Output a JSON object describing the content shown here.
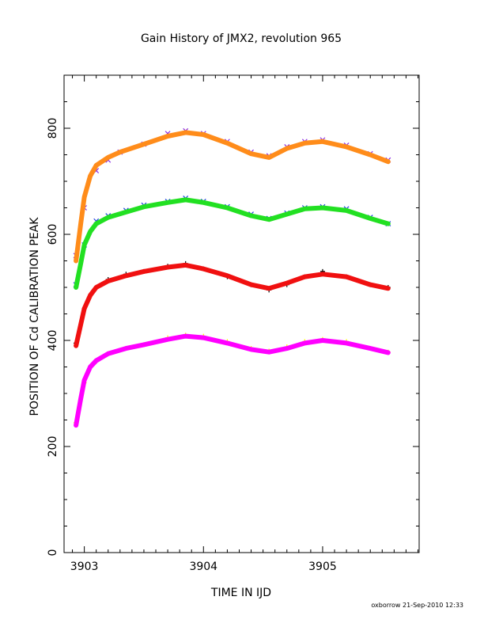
{
  "chart_data": {
    "type": "scatter",
    "title": "Gain History of JMX2, revolution 965",
    "xlabel": "TIME IN IJD",
    "ylabel": "POSITION OF Cd CALIBRATION PEAK",
    "xlim": [
      3902.83,
      3905.81
    ],
    "ylim": [
      0,
      900
    ],
    "xticks": [
      3903,
      3904,
      3905
    ],
    "xtick_labels": [
      "3903",
      "3904",
      "3905"
    ],
    "yticks": [
      0,
      200,
      400,
      600,
      800
    ],
    "ytick_labels": [
      "0",
      "200",
      "400",
      "600",
      "800"
    ],
    "grid": false,
    "footer": "oxborrow 21-Sep-2010 12:33",
    "series": [
      {
        "color": "#8a2be2",
        "marker": "x",
        "x": [
          3902.93,
          3903.0,
          3903.1,
          3903.2,
          3903.3,
          3903.5,
          3903.7,
          3903.85,
          3904.0,
          3904.2,
          3904.4,
          3904.55,
          3904.7,
          3904.85,
          3905.0,
          3905.2,
          3905.4,
          3905.55
        ],
        "y": [
          560,
          650,
          720,
          740,
          755,
          770,
          790,
          795,
          790,
          775,
          755,
          748,
          765,
          775,
          778,
          768,
          752,
          740
        ]
      },
      {
        "color": "#ff8c1a",
        "marker": "line",
        "x": [
          3902.93,
          3902.97,
          3903.0,
          3903.05,
          3903.1,
          3903.2,
          3903.3,
          3903.5,
          3903.7,
          3903.85,
          3904.0,
          3904.2,
          3904.4,
          3904.55,
          3904.7,
          3904.85,
          3905.0,
          3905.2,
          3905.4,
          3905.55
        ],
        "y": [
          550,
          620,
          670,
          710,
          730,
          745,
          755,
          770,
          785,
          792,
          788,
          772,
          752,
          745,
          762,
          772,
          775,
          765,
          750,
          737
        ]
      },
      {
        "color": "#1f3fe0",
        "marker": "x",
        "x": [
          3902.93,
          3903.0,
          3903.1,
          3903.2,
          3903.35,
          3903.5,
          3903.7,
          3903.85,
          3904.0,
          3904.2,
          3904.4,
          3904.55,
          3904.7,
          3904.85,
          3905.0,
          3905.2,
          3905.4,
          3905.55
        ],
        "y": [
          505,
          580,
          625,
          635,
          645,
          655,
          662,
          668,
          662,
          652,
          638,
          630,
          640,
          650,
          652,
          648,
          632,
          620
        ]
      },
      {
        "color": "#22e022",
        "marker": "line",
        "x": [
          3902.93,
          3902.97,
          3903.0,
          3903.05,
          3903.1,
          3903.2,
          3903.35,
          3903.5,
          3903.7,
          3903.85,
          3904.0,
          3904.2,
          3904.4,
          3904.55,
          3904.7,
          3904.85,
          3905.0,
          3905.2,
          3905.4,
          3905.55
        ],
        "y": [
          500,
          545,
          580,
          605,
          620,
          632,
          642,
          652,
          660,
          665,
          660,
          650,
          635,
          628,
          638,
          648,
          650,
          645,
          630,
          620
        ]
      },
      {
        "color": "#000000",
        "marker": "plus",
        "x": [
          3902.93,
          3903.0,
          3903.1,
          3903.2,
          3903.35,
          3903.5,
          3903.7,
          3903.85,
          3904.0,
          3904.2,
          3904.4,
          3904.55,
          3904.7,
          3904.85,
          3905.0,
          3905.2,
          3905.4,
          3905.55
        ],
        "y": [
          395,
          460,
          500,
          515,
          525,
          530,
          540,
          545,
          535,
          520,
          505,
          495,
          505,
          520,
          530,
          520,
          505,
          500
        ]
      },
      {
        "color": "#f01010",
        "marker": "line",
        "x": [
          3902.93,
          3902.97,
          3903.0,
          3903.05,
          3903.1,
          3903.2,
          3903.35,
          3903.5,
          3903.7,
          3903.85,
          3904.0,
          3904.2,
          3904.4,
          3904.55,
          3904.7,
          3904.85,
          3905.0,
          3905.2,
          3905.4,
          3905.55
        ],
        "y": [
          390,
          430,
          460,
          485,
          500,
          512,
          522,
          530,
          538,
          542,
          535,
          522,
          505,
          498,
          508,
          520,
          525,
          520,
          505,
          498
        ]
      },
      {
        "color": "#ffff00",
        "marker": "plus",
        "x": [
          3902.93,
          3903.0,
          3903.1,
          3903.2,
          3903.35,
          3903.5,
          3903.7,
          3903.85,
          3904.0,
          3904.2,
          3904.4,
          3904.55,
          3904.7,
          3904.85,
          3905.0,
          3905.2,
          3905.4,
          3905.55
        ],
        "y": [
          245,
          320,
          360,
          375,
          385,
          392,
          405,
          410,
          408,
          398,
          385,
          380,
          388,
          398,
          402,
          398,
          385,
          378
        ]
      },
      {
        "color": "#ff00ff",
        "marker": "line",
        "x": [
          3902.93,
          3902.97,
          3903.0,
          3903.05,
          3903.1,
          3903.2,
          3903.35,
          3903.5,
          3903.7,
          3903.85,
          3904.0,
          3904.2,
          3904.4,
          3904.55,
          3904.7,
          3904.85,
          3905.0,
          3905.2,
          3905.4,
          3905.55
        ],
        "y": [
          240,
          290,
          325,
          350,
          362,
          375,
          385,
          392,
          402,
          408,
          405,
          395,
          383,
          378,
          385,
          395,
          400,
          395,
          385,
          377
        ]
      }
    ]
  }
}
